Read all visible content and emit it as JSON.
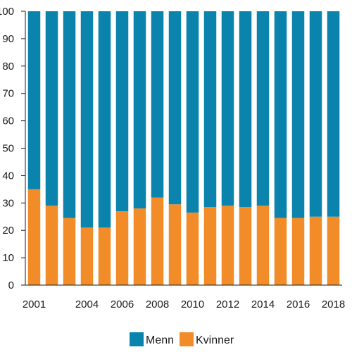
{
  "chart_data": {
    "type": "bar",
    "stacked": true,
    "categories": [
      "2001",
      "2002",
      "2003",
      "2004",
      "2005",
      "2006",
      "2007",
      "2008",
      "2009",
      "2010",
      "2011",
      "2012",
      "2013",
      "2014",
      "2015",
      "2016",
      "2017",
      "2018"
    ],
    "x_tick_labels": [
      "2001",
      "",
      "",
      "2004",
      "",
      "2006",
      "",
      "2008",
      "",
      "2010",
      "",
      "2012",
      "",
      "2014",
      "",
      "2016",
      "",
      "2018"
    ],
    "series": [
      {
        "name": "Kvinner",
        "color": "#f28c28",
        "values": [
          35,
          29,
          24.5,
          21,
          21,
          27,
          28,
          32,
          29.5,
          26.5,
          28.5,
          29,
          28.5,
          29,
          24.5,
          24.5,
          25,
          25
        ]
      },
      {
        "name": "Menn",
        "color": "#0a84ad",
        "values": [
          65,
          71,
          75.5,
          79,
          79,
          73,
          72,
          68,
          70.5,
          73.5,
          71.5,
          71,
          71.5,
          71,
          75.5,
          75.5,
          75,
          75
        ]
      }
    ],
    "ylim": [
      0,
      100
    ],
    "y_ticks": [
      0,
      10,
      20,
      30,
      40,
      50,
      60,
      70,
      80,
      90,
      100
    ],
    "y_tick_labels": [
      "0",
      "10",
      "20",
      "30",
      "40",
      "50",
      "60",
      "70",
      "80",
      "90",
      "100"
    ],
    "legend": {
      "placement": "bottom-center",
      "entries": [
        "Menn",
        "Kvinner"
      ]
    },
    "grid": false
  }
}
